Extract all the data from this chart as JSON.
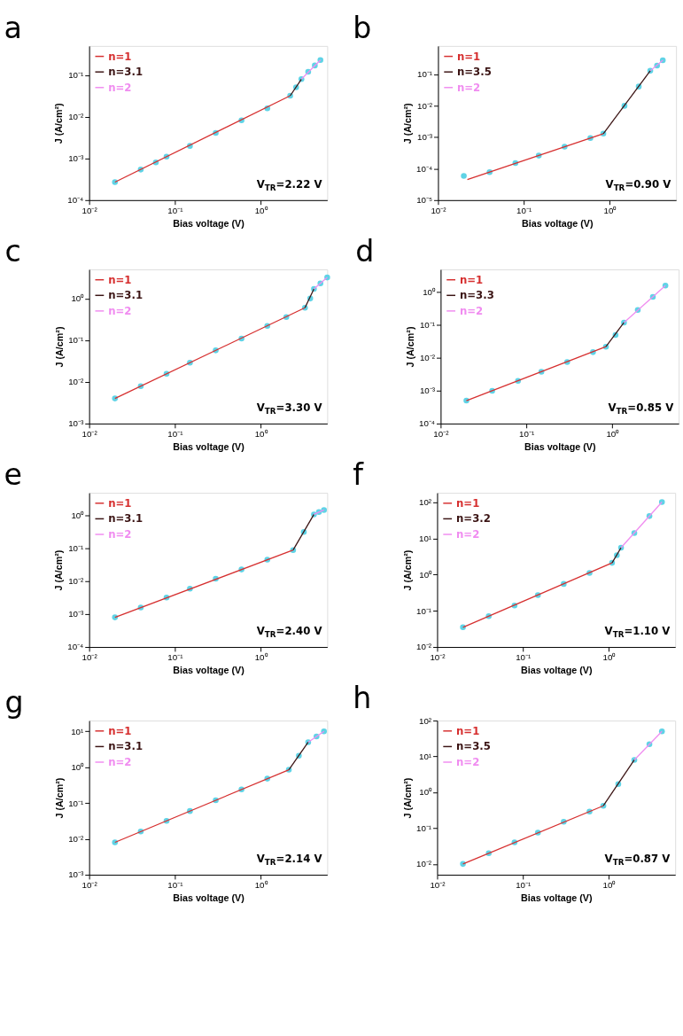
{
  "chart_data": [
    {
      "type": "scatter",
      "title": "a",
      "xlabel": "Bias voltage (V)",
      "ylabel": "J (A/cm²)",
      "log": "xy",
      "grid": false,
      "legend": "top left",
      "xlim": [
        0.01,
        6
      ],
      "ylim": [
        0.0001,
        0.5
      ],
      "xticks": [
        {
          "value": 0.01,
          "label": "10⁻²"
        },
        {
          "value": 0.1,
          "label": "10⁻¹"
        },
        {
          "value": 1,
          "label": "10⁰"
        }
      ],
      "yticks": [
        {
          "value": 0.0001,
          "label": "10⁻⁴"
        },
        {
          "value": 0.001,
          "label": "10⁻³"
        },
        {
          "value": 0.01,
          "label": "10⁻²"
        },
        {
          "value": 0.1,
          "label": "10⁻¹"
        }
      ],
      "annotations": [
        "V$_{TR}$=2.22 V"
      ],
      "series": [
        {
          "color": "#5fd3e6",
          "marker": "circle",
          "x": [
            0.02,
            0.04,
            0.06,
            0.08,
            0.15,
            0.3,
            0.6,
            1.2,
            2.22,
            2.6,
            3.0,
            3.6,
            4.3,
            5.0
          ],
          "values": [
            0.00027,
            0.00054,
            0.0008,
            0.0011,
            0.002,
            0.0041,
            0.0082,
            0.016,
            0.032,
            0.051,
            0.08,
            0.12,
            0.17,
            0.23
          ]
        },
        {
          "name": "n=1",
          "type": "line",
          "color": "#d62f2f",
          "x": [
            0.02,
            2.22
          ],
          "values": [
            0.00027,
            0.032
          ]
        },
        {
          "name": "n=3.1",
          "type": "line",
          "color": "#3b1414",
          "x": [
            2.22,
            3.0
          ],
          "values": [
            0.032,
            0.08
          ]
        },
        {
          "name": "n=2",
          "type": "line",
          "color": "#f08cf0",
          "x": [
            3.0,
            5.0
          ],
          "values": [
            0.08,
            0.23
          ]
        }
      ]
    },
    {
      "type": "scatter",
      "title": "b",
      "xlabel": "Bias voltage (V)",
      "ylabel": "J (A/cm²)",
      "log": "xy",
      "grid": false,
      "legend": "top left",
      "xlim": [
        0.01,
        6
      ],
      "ylim": [
        1e-05,
        0.8
      ],
      "xticks": [
        {
          "value": 0.01,
          "label": "10⁻²"
        },
        {
          "value": 0.1,
          "label": "10⁻¹"
        },
        {
          "value": 1,
          "label": "10⁰"
        }
      ],
      "yticks": [
        {
          "value": 1e-05,
          "label": "10⁻⁵"
        },
        {
          "value": 0.0001,
          "label": "10⁻⁴"
        },
        {
          "value": 0.001,
          "label": "10⁻³"
        },
        {
          "value": 0.01,
          "label": "10⁻²"
        },
        {
          "value": 0.1,
          "label": "10⁻¹"
        }
      ],
      "annotations": [
        "V$_{TR}$=0.90 V"
      ],
      "series": [
        {
          "color": "#5fd3e6",
          "marker": "circle",
          "x": [
            0.02,
            0.04,
            0.08,
            0.15,
            0.3,
            0.6,
            0.85,
            1.5,
            2.2,
            3.0,
            3.6,
            4.2
          ],
          "values": [
            5.9e-05,
            7.8e-05,
            0.00015,
            0.00026,
            0.0005,
            0.00094,
            0.0013,
            0.01,
            0.041,
            0.13,
            0.19,
            0.28
          ]
        },
        {
          "name": "n=1",
          "type": "line",
          "color": "#d62f2f",
          "x": [
            0.022,
            0.85
          ],
          "values": [
            4.5e-05,
            0.0013
          ]
        },
        {
          "name": "n=3.5",
          "type": "line",
          "color": "#3b1414",
          "x": [
            0.85,
            3.0
          ],
          "values": [
            0.0013,
            0.13
          ]
        },
        {
          "name": "n=2",
          "type": "line",
          "color": "#f08cf0",
          "x": [
            3.0,
            4.2
          ],
          "values": [
            0.13,
            0.28
          ]
        }
      ]
    },
    {
      "type": "scatter",
      "title": "c",
      "xlabel": "Bias voltage (V)",
      "ylabel": "J (A/cm²)",
      "log": "xy",
      "grid": false,
      "legend": "top left",
      "xlim": [
        0.01,
        6
      ],
      "ylim": [
        0.001,
        5
      ],
      "xticks": [
        {
          "value": 0.01,
          "label": "10⁻²"
        },
        {
          "value": 0.1,
          "label": "10⁻¹"
        },
        {
          "value": 1,
          "label": "10⁰"
        }
      ],
      "yticks": [
        {
          "value": 0.001,
          "label": "10⁻³"
        },
        {
          "value": 0.01,
          "label": "10⁻²"
        },
        {
          "value": 0.1,
          "label": "10⁻¹"
        },
        {
          "value": 1,
          "label": "10⁰"
        }
      ],
      "annotations": [
        "V$_{TR}$=3.30 V"
      ],
      "series": [
        {
          "color": "#5fd3e6",
          "marker": "circle",
          "x": [
            0.02,
            0.04,
            0.08,
            0.15,
            0.3,
            0.6,
            1.2,
            2.0,
            3.3,
            3.8,
            4.2,
            5.0,
            6.0
          ],
          "values": [
            0.004,
            0.0079,
            0.0156,
            0.029,
            0.057,
            0.11,
            0.22,
            0.36,
            0.6,
            1.0,
            1.7,
            2.3,
            3.2
          ]
        },
        {
          "name": "n=1",
          "type": "line",
          "color": "#d62f2f",
          "x": [
            0.02,
            3.3
          ],
          "values": [
            0.004,
            0.6
          ]
        },
        {
          "name": "n=3.1",
          "type": "line",
          "color": "#3b1414",
          "x": [
            3.3,
            4.2
          ],
          "values": [
            0.6,
            1.7
          ]
        },
        {
          "name": "n=2",
          "type": "line",
          "color": "#f08cf0",
          "x": [
            4.2,
            6.0
          ],
          "values": [
            1.7,
            3.2
          ]
        }
      ]
    },
    {
      "type": "scatter",
      "title": "d",
      "xlabel": "Bias voltage (V)",
      "ylabel": "J (A/cm²)",
      "log": "xy",
      "grid": false,
      "legend": "top left",
      "xlim": [
        0.01,
        6
      ],
      "ylim": [
        0.0001,
        5
      ],
      "xticks": [
        {
          "value": 0.01,
          "label": "10⁻²"
        },
        {
          "value": 0.1,
          "label": "10⁻¹"
        },
        {
          "value": 1,
          "label": "10⁰"
        }
      ],
      "yticks": [
        {
          "value": 0.0001,
          "label": "10⁻⁴"
        },
        {
          "value": 0.001,
          "label": "10⁻³"
        },
        {
          "value": 0.01,
          "label": "10⁻²"
        },
        {
          "value": 0.1,
          "label": "10⁻¹"
        },
        {
          "value": 1,
          "label": "10⁰"
        }
      ],
      "annotations": [
        "V$_{TR}$=0.85 V"
      ],
      "series": [
        {
          "color": "#5fd3e6",
          "marker": "circle",
          "x": [
            0.02,
            0.04,
            0.08,
            0.15,
            0.3,
            0.6,
            0.85,
            1.1,
            1.38,
            2.0,
            3.0,
            4.2
          ],
          "values": [
            0.0005,
            0.001,
            0.002,
            0.0038,
            0.0075,
            0.015,
            0.022,
            0.05,
            0.12,
            0.29,
            0.73,
            1.6
          ]
        },
        {
          "name": "n=1",
          "type": "line",
          "color": "#d62f2f",
          "x": [
            0.02,
            0.85
          ],
          "values": [
            0.0005,
            0.022
          ]
        },
        {
          "name": "n=3.3",
          "type": "line",
          "color": "#3b1414",
          "x": [
            0.85,
            1.38
          ],
          "values": [
            0.022,
            0.12
          ]
        },
        {
          "name": "n=2",
          "type": "line",
          "color": "#f08cf0",
          "x": [
            1.38,
            4.2
          ],
          "values": [
            0.12,
            1.6
          ]
        }
      ]
    },
    {
      "type": "scatter",
      "title": "e",
      "xlabel": "Bias voltage (V)",
      "ylabel": "J (A/cm²)",
      "log": "xy",
      "grid": false,
      "legend": "top left",
      "xlim": [
        0.01,
        6
      ],
      "ylim": [
        0.0001,
        5
      ],
      "xticks": [
        {
          "value": 0.01,
          "label": "10⁻²"
        },
        {
          "value": 0.1,
          "label": "10⁻¹"
        },
        {
          "value": 1,
          "label": "10⁰"
        }
      ],
      "yticks": [
        {
          "value": 0.0001,
          "label": "10⁻⁴"
        },
        {
          "value": 0.001,
          "label": "10⁻³"
        },
        {
          "value": 0.01,
          "label": "10⁻²"
        },
        {
          "value": 0.1,
          "label": "10⁻¹"
        },
        {
          "value": 1,
          "label": "10⁰"
        }
      ],
      "annotations": [
        "V$_{TR}$=2.40 V"
      ],
      "series": [
        {
          "color": "#5fd3e6",
          "marker": "circle",
          "x": [
            0.02,
            0.04,
            0.08,
            0.15,
            0.3,
            0.6,
            1.2,
            2.4,
            3.2,
            4.2,
            4.8,
            5.5
          ],
          "values": [
            0.0008,
            0.0016,
            0.0032,
            0.006,
            0.012,
            0.023,
            0.046,
            0.09,
            0.32,
            1.1,
            1.3,
            1.5
          ]
        },
        {
          "name": "n=1",
          "type": "line",
          "color": "#d62f2f",
          "x": [
            0.02,
            2.4
          ],
          "values": [
            0.0008,
            0.09
          ]
        },
        {
          "name": "n=3.1",
          "type": "line",
          "color": "#3b1414",
          "x": [
            2.4,
            4.2
          ],
          "values": [
            0.09,
            1.1
          ]
        },
        {
          "name": "n=2",
          "type": "line",
          "color": "#f08cf0",
          "x": [
            4.2,
            5.5
          ],
          "values": [
            1.1,
            1.5
          ]
        }
      ]
    },
    {
      "type": "scatter",
      "title": "f",
      "xlabel": "Bias voltage (V)",
      "ylabel": "J (A/cm²)",
      "log": "xy",
      "grid": false,
      "legend": "top left",
      "xlim": [
        0.01,
        6
      ],
      "ylim": [
        0.01,
        180
      ],
      "xticks": [
        {
          "value": 0.01,
          "label": "10⁻²"
        },
        {
          "value": 0.1,
          "label": "10⁻¹"
        },
        {
          "value": 1,
          "label": "10⁰"
        }
      ],
      "yticks": [
        {
          "value": 0.01,
          "label": "10⁻²"
        },
        {
          "value": 0.1,
          "label": "10⁻¹"
        },
        {
          "value": 1,
          "label": "10⁰"
        },
        {
          "value": 10,
          "label": "10¹"
        },
        {
          "value": 100,
          "label": "10²"
        }
      ],
      "annotations": [
        "V$_{TR}$=1.10 V"
      ],
      "series": [
        {
          "color": "#5fd3e6",
          "marker": "circle",
          "x": [
            0.02,
            0.04,
            0.08,
            0.15,
            0.3,
            0.6,
            1.1,
            1.25,
            1.4,
            2.0,
            3.0,
            4.2
          ],
          "values": [
            0.035,
            0.071,
            0.14,
            0.27,
            0.55,
            1.1,
            2.1,
            3.4,
            5.5,
            14,
            41,
            100
          ]
        },
        {
          "name": "n=1",
          "type": "line",
          "color": "#d62f2f",
          "x": [
            0.02,
            1.1
          ],
          "values": [
            0.035,
            2.1
          ]
        },
        {
          "name": "n=3.2",
          "type": "line",
          "color": "#3b1414",
          "x": [
            1.1,
            1.4
          ],
          "values": [
            2.1,
            5.5
          ]
        },
        {
          "name": "n=2",
          "type": "line",
          "color": "#f08cf0",
          "x": [
            1.4,
            4.2
          ],
          "values": [
            5.5,
            100
          ]
        }
      ]
    },
    {
      "type": "scatter",
      "title": "g",
      "xlabel": "Bias voltage (V)",
      "ylabel": "J (A/cm²)",
      "log": "xy",
      "grid": false,
      "legend": "top left",
      "xlim": [
        0.01,
        6
      ],
      "ylim": [
        0.001,
        20
      ],
      "xticks": [
        {
          "value": 0.01,
          "label": "10⁻²"
        },
        {
          "value": 0.1,
          "label": "10⁻¹"
        },
        {
          "value": 1,
          "label": "10⁰"
        }
      ],
      "yticks": [
        {
          "value": 0.001,
          "label": "10⁻³"
        },
        {
          "value": 0.01,
          "label": "10⁻²"
        },
        {
          "value": 0.1,
          "label": "10⁻¹"
        },
        {
          "value": 1,
          "label": "10⁰"
        },
        {
          "value": 10,
          "label": "10¹"
        }
      ],
      "annotations": [
        "V$_{TR}$=2.14 V"
      ],
      "series": [
        {
          "color": "#5fd3e6",
          "marker": "circle",
          "x": [
            0.02,
            0.04,
            0.08,
            0.15,
            0.3,
            0.6,
            1.2,
            2.14,
            2.8,
            3.6,
            4.5,
            5.5
          ],
          "values": [
            0.008,
            0.016,
            0.032,
            0.06,
            0.12,
            0.24,
            0.48,
            0.85,
            2.1,
            5,
            7.2,
            10
          ]
        },
        {
          "name": "n=1",
          "type": "line",
          "color": "#d62f2f",
          "x": [
            0.02,
            2.14
          ],
          "values": [
            0.008,
            0.85
          ]
        },
        {
          "name": "n=3.1",
          "type": "line",
          "color": "#3b1414",
          "x": [
            2.14,
            3.6
          ],
          "values": [
            0.85,
            5
          ]
        },
        {
          "name": "n=2",
          "type": "line",
          "color": "#f08cf0",
          "x": [
            3.6,
            5.5
          ],
          "values": [
            5,
            10
          ]
        }
      ]
    },
    {
      "type": "scatter",
      "title": "h",
      "xlabel": "Bias voltage (V)",
      "ylabel": "J (A/cm²)",
      "log": "xy",
      "grid": false,
      "legend": "top left",
      "xlim": [
        0.01,
        6
      ],
      "ylim": [
        0.005,
        100
      ],
      "xticks": [
        {
          "value": 0.01,
          "label": "10⁻²"
        },
        {
          "value": 0.1,
          "label": "10⁻¹"
        },
        {
          "value": 1,
          "label": "10⁰"
        }
      ],
      "yticks": [
        {
          "value": 0.01,
          "label": "10⁻²"
        },
        {
          "value": 0.1,
          "label": "10⁻¹"
        },
        {
          "value": 1,
          "label": "10⁰"
        },
        {
          "value": 10,
          "label": "10¹"
        },
        {
          "value": 100,
          "label": "10²"
        }
      ],
      "annotations": [
        "V$_{TR}$=0.87 V"
      ],
      "series": [
        {
          "color": "#5fd3e6",
          "marker": "circle",
          "x": [
            0.02,
            0.04,
            0.08,
            0.15,
            0.3,
            0.6,
            0.87,
            1.3,
            2.0,
            3.0,
            4.2
          ],
          "values": [
            0.01,
            0.02,
            0.04,
            0.075,
            0.15,
            0.29,
            0.42,
            1.7,
            8,
            22,
            50
          ]
        },
        {
          "name": "n=1",
          "type": "line",
          "color": "#d62f2f",
          "x": [
            0.02,
            0.87
          ],
          "values": [
            0.01,
            0.42
          ]
        },
        {
          "name": "n=3.5",
          "type": "line",
          "color": "#3b1414",
          "x": [
            0.87,
            2.0
          ],
          "values": [
            0.42,
            8
          ]
        },
        {
          "name": "n=2",
          "type": "line",
          "color": "#f08cf0",
          "x": [
            2.0,
            4.2
          ],
          "values": [
            8,
            50
          ]
        }
      ]
    }
  ]
}
